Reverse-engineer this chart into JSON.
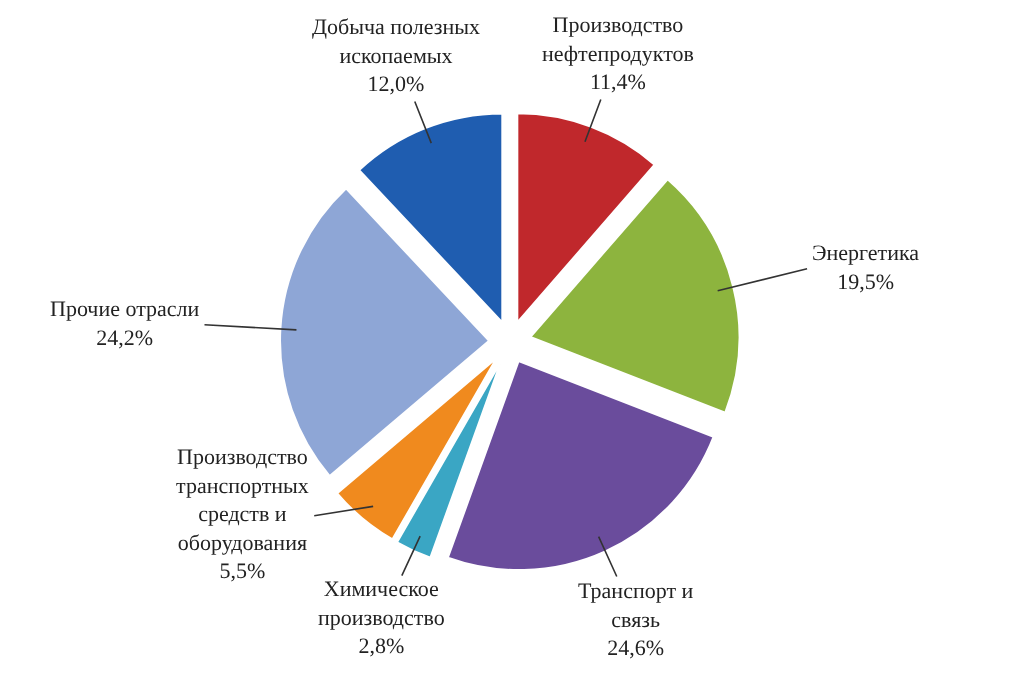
{
  "chart_data": {
    "type": "pie",
    "categories": [
      "Производство нефтепродуктов",
      "Энергетика",
      "Транспорт и связь",
      "Химическое производство",
      "Производство транспортных средств и оборудования",
      "Прочие отрасли",
      "Добыча полезных ископаемых"
    ],
    "values": [
      11.4,
      19.5,
      24.6,
      2.8,
      5.5,
      24.2,
      12.0
    ],
    "value_labels": [
      "11,4%",
      "19,5%",
      "24,6%",
      "2,8%",
      "5,5%",
      "24,2%",
      "12,0%"
    ],
    "colors": [
      "#c0282c",
      "#8db43e",
      "#6a4c9c",
      "#3aa6c4",
      "#f08a1e",
      "#8ea6d6",
      "#1f5db0"
    ],
    "legend": false
  }
}
